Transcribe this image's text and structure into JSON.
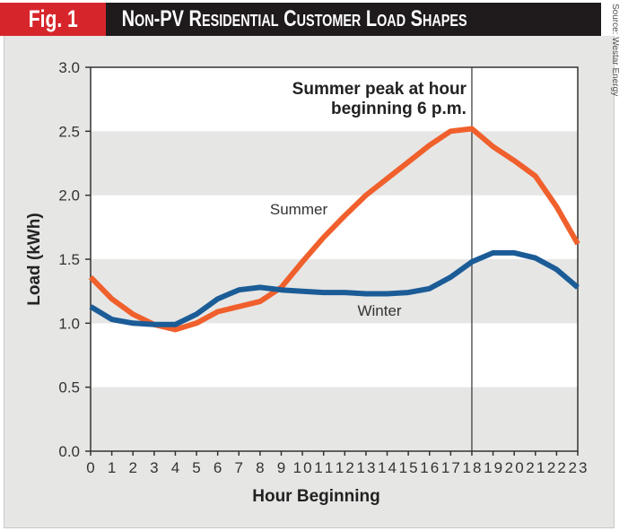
{
  "header": {
    "fig_label": "Fig. 1",
    "title": "Non-PV Residential Customer Load Shapes",
    "source": "Source: Westar Energy"
  },
  "colors": {
    "fig_box": "#d7262b",
    "title_bar": "#1f1b1c",
    "summer": "#f0602c",
    "winter": "#1b5c97",
    "band_gray": "#e6e6e5",
    "band_white": "#ffffff"
  },
  "chart_data": {
    "type": "line",
    "title": "Non-PV Residential Customer Load Shapes",
    "xlabel": "Hour Beginning",
    "ylabel": "Load (kWh)",
    "x": [
      0,
      1,
      2,
      3,
      4,
      5,
      6,
      7,
      8,
      9,
      10,
      11,
      12,
      13,
      14,
      15,
      16,
      17,
      18,
      19,
      20,
      21,
      22,
      23
    ],
    "x_tick_labels": [
      "0",
      "1",
      "2",
      "3",
      "4",
      "5",
      "6",
      "7",
      "8",
      "9",
      "10",
      "11",
      "12",
      "13",
      "14",
      "15",
      "16",
      "17",
      "18",
      "19",
      "20",
      "21",
      "22",
      "23"
    ],
    "ylim": [
      0,
      3.0
    ],
    "y_ticks": [
      0.0,
      0.5,
      1.0,
      1.5,
      2.0,
      2.5,
      3.0
    ],
    "y_tick_labels": [
      "0.0",
      "0.5",
      "1.0",
      "1.5",
      "2.0",
      "2.5",
      "3.0"
    ],
    "grid": "alternating horizontal bands",
    "series": [
      {
        "name": "Summer",
        "values": [
          1.36,
          1.19,
          1.07,
          0.99,
          0.95,
          1.0,
          1.09,
          1.13,
          1.17,
          1.28,
          1.48,
          1.67,
          1.84,
          2.0,
          2.13,
          2.26,
          2.39,
          2.5,
          2.52,
          2.38,
          2.27,
          2.15,
          1.91,
          1.62
        ]
      },
      {
        "name": "Winter",
        "values": [
          1.13,
          1.03,
          1.0,
          0.99,
          0.99,
          1.07,
          1.19,
          1.26,
          1.28,
          1.26,
          1.25,
          1.24,
          1.24,
          1.23,
          1.23,
          1.24,
          1.27,
          1.36,
          1.48,
          1.55,
          1.55,
          1.51,
          1.42,
          1.28
        ]
      }
    ],
    "annotations": [
      {
        "text_line1": "Summer peak at hour",
        "text_line2": "beginning 6 p.m.",
        "x": 18
      }
    ]
  }
}
